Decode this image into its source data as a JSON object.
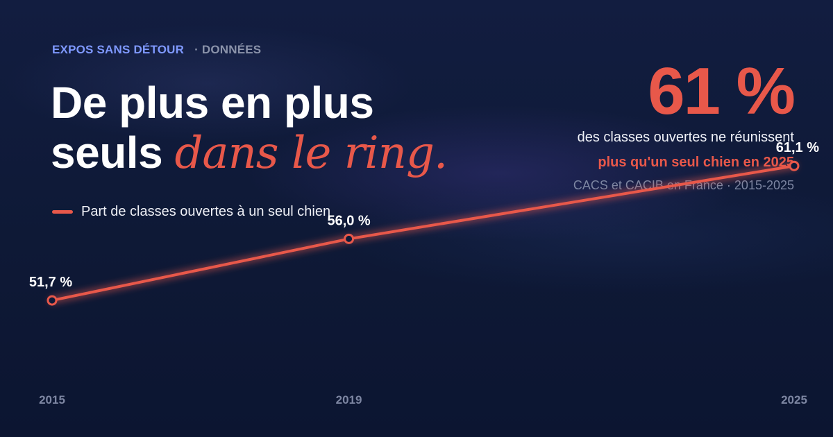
{
  "header": {
    "brand": "EXPOS SANS DÉTOUR",
    "section": "· DONNÉES"
  },
  "headline": {
    "line1": "De plus en plus",
    "line2_plain": "seuls",
    "line2_accent": "dans le ring."
  },
  "legend": {
    "label": "Part de classes ouvertes à un seul chien"
  },
  "stat": {
    "value": "61 %",
    "line1": "des classes ouvertes ne réunissent",
    "line2": "plus qu'un seul chien en 2025",
    "line3": "CACS et CACIB en France · 2015-2025"
  },
  "colors": {
    "background": "#0f1a38",
    "accent": "#e8584a",
    "brand": "#7f99ff",
    "text": "#ffffff",
    "muted": "#7d86a2"
  },
  "chart_data": {
    "type": "line",
    "x": [
      2015,
      2019,
      2025
    ],
    "series": [
      {
        "name": "Part de classes ouvertes à un seul chien",
        "values": [
          51.7,
          56.0,
          61.1
        ],
        "labels": [
          "51,7 %",
          "56,0 %",
          "61,1 %"
        ]
      }
    ],
    "tick_labels": [
      "2015",
      "2019",
      "2025"
    ],
    "xlim": [
      2015,
      2025
    ],
    "ylim": [
      47,
      63
    ],
    "grid": false,
    "legend_position": "top-left"
  }
}
